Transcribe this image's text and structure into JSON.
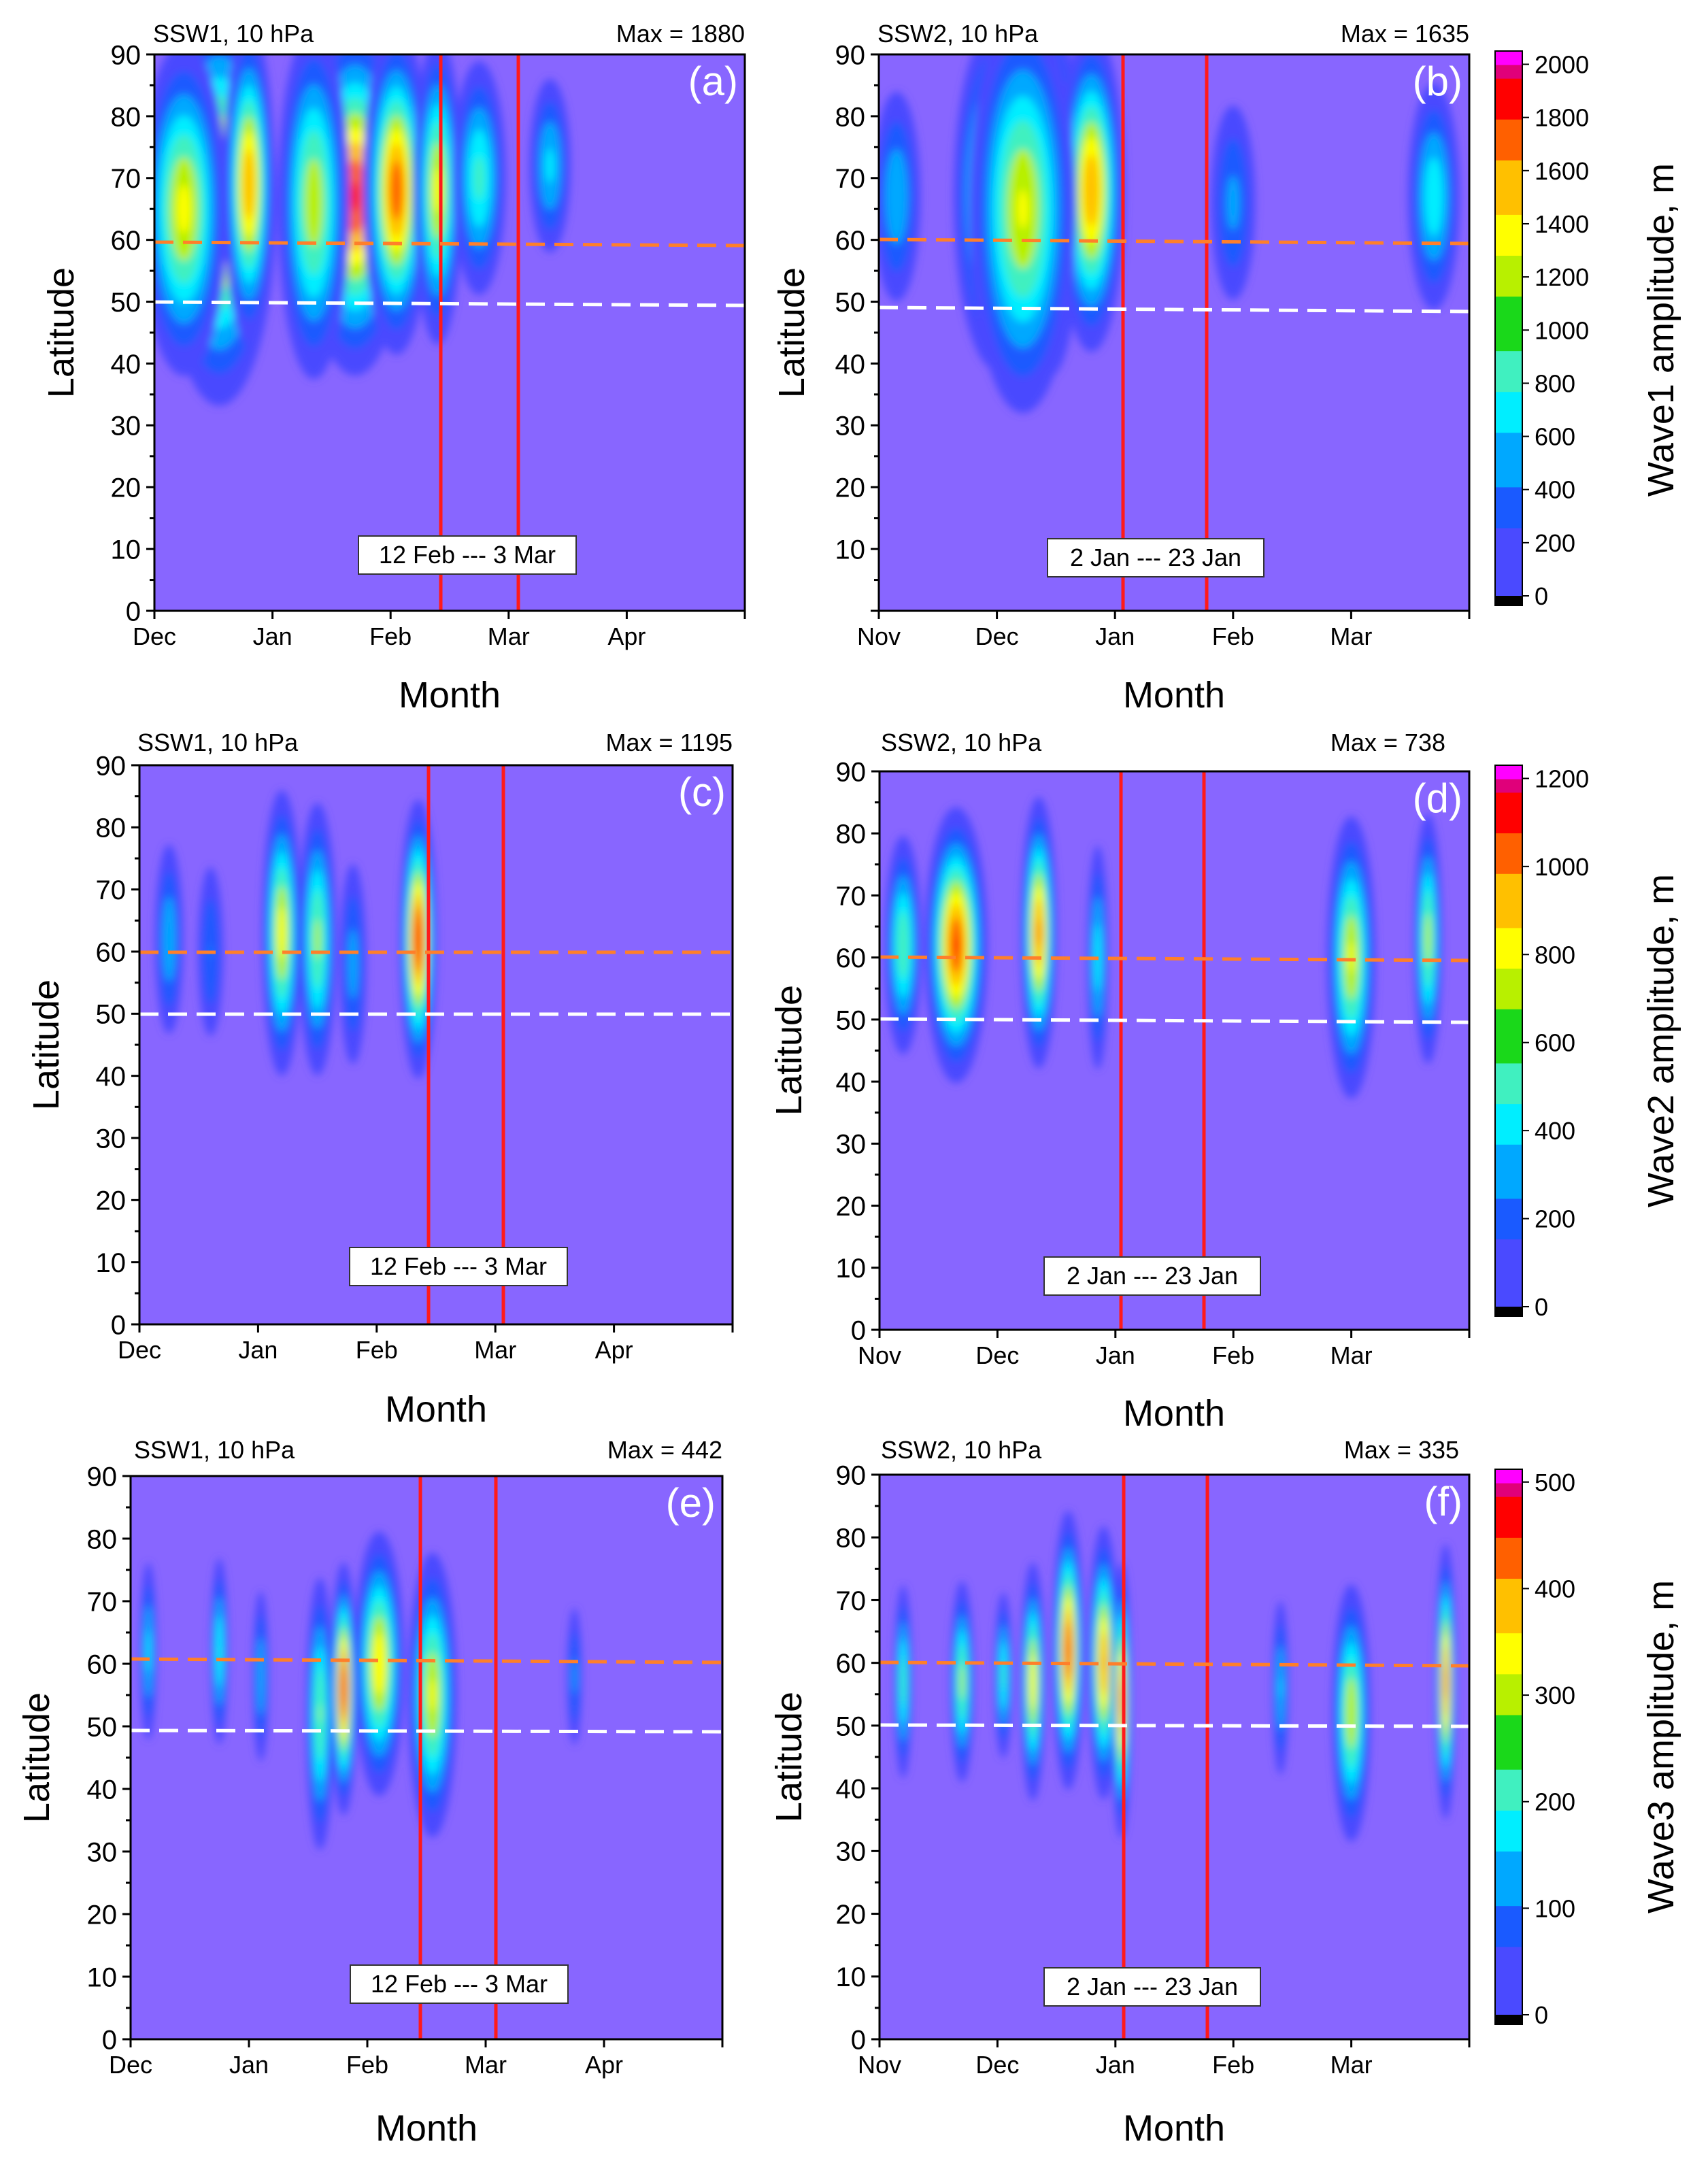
{
  "chart_data": [
    {
      "type": "heatmap",
      "panel_label": "(a)",
      "header_left": "SSW1, 10 hPa",
      "header_right": "Max = 1880",
      "xlabel": "Month",
      "ylabel": "Latitude",
      "x_ticks": [
        "Dec",
        "Jan",
        "Feb",
        "Mar",
        "Apr"
      ],
      "ylim": [
        0,
        90
      ],
      "y_ticks": [
        "0",
        "10",
        "20",
        "30",
        "40",
        "50",
        "60",
        "70",
        "80",
        "90"
      ],
      "period_label": "12 Feb --- 3 Mar",
      "event_lines_month": [
        2.4,
        3.05
      ],
      "ref_lines": [
        {
          "lat_start": 59.5,
          "lat_end": 59.0,
          "color": "#ff7f2a"
        },
        {
          "lat_start": 50.0,
          "lat_end": 49.5,
          "color": "#ffffff"
        }
      ],
      "max_value": 1880,
      "cells": [
        {
          "month": 0.55,
          "lat": 66,
          "value": 1650,
          "sx": 0.22,
          "sy": 15
        },
        {
          "month": 0.8,
          "lat": 69,
          "value": 1600,
          "sx": 0.1,
          "sy": 12
        },
        {
          "month": 0.25,
          "lat": 65,
          "value": 1300,
          "sx": 0.18,
          "sy": 13
        },
        {
          "month": 1.7,
          "lat": 67,
          "value": 1800,
          "sx": 0.2,
          "sy": 13
        },
        {
          "month": 2.05,
          "lat": 68,
          "value": 1750,
          "sx": 0.13,
          "sy": 12
        },
        {
          "month": 1.35,
          "lat": 66,
          "value": 1200,
          "sx": 0.15,
          "sy": 14
        },
        {
          "month": 2.4,
          "lat": 68,
          "value": 1300,
          "sx": 0.1,
          "sy": 12
        },
        {
          "month": 2.75,
          "lat": 70,
          "value": 900,
          "sx": 0.12,
          "sy": 10
        },
        {
          "month": 3.35,
          "lat": 72,
          "value": 700,
          "sx": 0.1,
          "sy": 8
        }
      ]
    },
    {
      "type": "heatmap",
      "panel_label": "(b)",
      "header_left": "SSW2, 10 hPa",
      "header_right": "Max = 1635",
      "xlabel": "Month",
      "ylabel": "Latitude",
      "x_ticks": [
        "Nov",
        "Dec",
        "Jan",
        "Feb",
        "Mar"
      ],
      "ylim": [
        0,
        90
      ],
      "y_ticks": [
        "",
        "10",
        "20",
        "30",
        "40",
        "50",
        "60",
        "70",
        "80",
        "90"
      ],
      "period_label": "2 Jan --- 23 Jan",
      "event_lines_month": [
        2.05,
        2.75
      ],
      "ref_lines": [
        {
          "lat_start": 60.0,
          "lat_end": 59.5,
          "color": "#ff7f2a"
        },
        {
          "lat_start": 49.8,
          "lat_end": 49.3,
          "color": "#ffffff"
        }
      ],
      "max_value": 1635,
      "cells": [
        {
          "month": 1.0,
          "lat": 67,
          "value": 1350,
          "sx": 0.17,
          "sy": 13
        },
        {
          "month": 1.45,
          "lat": 67,
          "value": 1600,
          "sx": 0.12,
          "sy": 13
        },
        {
          "month": 1.8,
          "lat": 68,
          "value": 1400,
          "sx": 0.13,
          "sy": 12
        },
        {
          "month": 1.22,
          "lat": 65,
          "value": 1100,
          "sx": 0.22,
          "sy": 16
        },
        {
          "month": 0.15,
          "lat": 67,
          "value": 550,
          "sx": 0.12,
          "sy": 10
        },
        {
          "month": 3.0,
          "lat": 66,
          "value": 450,
          "sx": 0.12,
          "sy": 10
        },
        {
          "month": 4.7,
          "lat": 67,
          "value": 700,
          "sx": 0.12,
          "sy": 10
        }
      ]
    },
    {
      "type": "heatmap",
      "panel_label": "(c)",
      "header_left": "SSW1, 10 hPa",
      "header_right": "Max = 1195",
      "xlabel": "Month",
      "ylabel": "Latitude",
      "x_ticks": [
        "Dec",
        "Jan",
        "Feb",
        "Mar",
        "Apr"
      ],
      "ylim": [
        0,
        90
      ],
      "y_ticks": [
        "0",
        "10",
        "20",
        "30",
        "40",
        "50",
        "60",
        "70",
        "80",
        "90"
      ],
      "period_label": "12 Feb --- 3 Mar",
      "event_lines_month": [
        2.45,
        3.05
      ],
      "ref_lines": [
        {
          "lat_start": 60.0,
          "lat_end": 60.0,
          "color": "#ff7f2a"
        },
        {
          "lat_start": 50.0,
          "lat_end": 50.0,
          "color": "#ffffff"
        }
      ],
      "max_value": 1195,
      "cells": [
        {
          "month": 1.2,
          "lat": 63,
          "value": 850,
          "sx": 0.08,
          "sy": 11
        },
        {
          "month": 1.5,
          "lat": 62,
          "value": 700,
          "sx": 0.08,
          "sy": 11
        },
        {
          "month": 2.35,
          "lat": 62,
          "value": 1195,
          "sx": 0.07,
          "sy": 10
        },
        {
          "month": 0.25,
          "lat": 62,
          "value": 400,
          "sx": 0.07,
          "sy": 9
        },
        {
          "month": 1.8,
          "lat": 58,
          "value": 350,
          "sx": 0.07,
          "sy": 10
        },
        {
          "month": 0.6,
          "lat": 60,
          "value": 300,
          "sx": 0.07,
          "sy": 9
        }
      ]
    },
    {
      "type": "heatmap",
      "panel_label": "(d)",
      "header_left": "SSW2, 10 hPa",
      "header_right": "Max = 738",
      "xlabel": "Month",
      "ylabel": "Latitude",
      "x_ticks": [
        "Nov",
        "Dec",
        "Jan",
        "Feb",
        "Mar"
      ],
      "ylim": [
        0,
        90
      ],
      "y_ticks": [
        "0",
        "10",
        "20",
        "30",
        "40",
        "50",
        "60",
        "70",
        "80",
        "90"
      ],
      "period_label": "2 Jan --- 23 Jan",
      "event_lines_month": [
        2.05,
        2.75
      ],
      "ref_lines": [
        {
          "lat_start": 60.0,
          "lat_end": 59.5,
          "color": "#ff7f2a"
        },
        {
          "lat_start": 50.0,
          "lat_end": 49.5,
          "color": "#ffffff"
        }
      ],
      "max_value": 738,
      "cells": [
        {
          "month": 0.65,
          "lat": 62,
          "value": 700,
          "sx": 0.12,
          "sy": 10
        },
        {
          "month": 1.35,
          "lat": 64,
          "value": 650,
          "sx": 0.07,
          "sy": 10
        },
        {
          "month": 0.2,
          "lat": 62,
          "value": 400,
          "sx": 0.08,
          "sy": 9
        },
        {
          "month": 1.85,
          "lat": 60,
          "value": 300,
          "sx": 0.05,
          "sy": 10
        },
        {
          "month": 4.0,
          "lat": 60,
          "value": 500,
          "sx": 0.1,
          "sy": 11
        },
        {
          "month": 4.65,
          "lat": 63,
          "value": 450,
          "sx": 0.06,
          "sy": 10
        }
      ]
    },
    {
      "type": "heatmap",
      "panel_label": "(e)",
      "header_left": "SSW1, 10 hPa",
      "header_right": "Max = 442",
      "xlabel": "Month",
      "ylabel": "Latitude",
      "x_ticks": [
        "Dec",
        "Jan",
        "Feb",
        "Mar",
        "Apr"
      ],
      "ylim": [
        0,
        90
      ],
      "y_ticks": [
        "0",
        "10",
        "20",
        "30",
        "40",
        "50",
        "60",
        "70",
        "80",
        "90"
      ],
      "period_label": "12 Feb --- 3 Mar",
      "event_lines_month": [
        2.45,
        3.1
      ],
      "ref_lines": [
        {
          "lat_start": 60.5,
          "lat_end": 60.0,
          "color": "#ff7f2a"
        },
        {
          "lat_start": 49.5,
          "lat_end": 49.3,
          "color": "#ffffff"
        }
      ],
      "max_value": 442,
      "cells": [
        {
          "month": 1.8,
          "lat": 56,
          "value": 442,
          "sx": 0.05,
          "sy": 9
        },
        {
          "month": 2.1,
          "lat": 60,
          "value": 330,
          "sx": 0.1,
          "sy": 10
        },
        {
          "month": 2.55,
          "lat": 55,
          "value": 300,
          "sx": 0.1,
          "sy": 11
        },
        {
          "month": 1.6,
          "lat": 52,
          "value": 250,
          "sx": 0.06,
          "sy": 11
        },
        {
          "month": 0.75,
          "lat": 62,
          "value": 200,
          "sx": 0.04,
          "sy": 8
        },
        {
          "month": 0.15,
          "lat": 62,
          "value": 170,
          "sx": 0.04,
          "sy": 8
        },
        {
          "month": 1.1,
          "lat": 58,
          "value": 150,
          "sx": 0.04,
          "sy": 8
        },
        {
          "month": 3.75,
          "lat": 58,
          "value": 120,
          "sx": 0.04,
          "sy": 7
        }
      ]
    },
    {
      "type": "heatmap",
      "panel_label": "(f)",
      "header_left": "SSW2, 10 hPa",
      "header_right": "Max = 335",
      "xlabel": "Month",
      "ylabel": "Latitude",
      "x_ticks": [
        "Nov",
        "Dec",
        "Jan",
        "Feb",
        "Mar"
      ],
      "ylim": [
        0,
        90
      ],
      "y_ticks": [
        "0",
        "10",
        "20",
        "30",
        "40",
        "50",
        "60",
        "70",
        "80",
        "90"
      ],
      "period_label": "2 Jan --- 23 Jan",
      "event_lines_month": [
        2.05,
        2.75
      ],
      "ref_lines": [
        {
          "lat_start": 60.0,
          "lat_end": 59.5,
          "color": "#ff7f2a"
        },
        {
          "lat_start": 50.0,
          "lat_end": 49.8,
          "color": "#ffffff"
        }
      ],
      "max_value": 335,
      "cells": [
        {
          "month": 1.6,
          "lat": 62,
          "value": 320,
          "sx": 0.06,
          "sy": 10
        },
        {
          "month": 1.9,
          "lat": 60,
          "value": 290,
          "sx": 0.06,
          "sy": 10
        },
        {
          "month": 2.05,
          "lat": 54,
          "value": 300,
          "sx": 0.04,
          "sy": 10
        },
        {
          "month": 1.3,
          "lat": 57,
          "value": 250,
          "sx": 0.05,
          "sy": 9
        },
        {
          "month": 0.7,
          "lat": 57,
          "value": 200,
          "sx": 0.05,
          "sy": 8
        },
        {
          "month": 0.2,
          "lat": 57,
          "value": 170,
          "sx": 0.04,
          "sy": 8
        },
        {
          "month": 1.05,
          "lat": 58,
          "value": 160,
          "sx": 0.04,
          "sy": 7
        },
        {
          "month": 3.4,
          "lat": 56,
          "value": 120,
          "sx": 0.04,
          "sy": 8
        },
        {
          "month": 4.0,
          "lat": 52,
          "value": 220,
          "sx": 0.08,
          "sy": 10
        },
        {
          "month": 4.8,
          "lat": 57,
          "value": 300,
          "sx": 0.04,
          "sy": 10
        }
      ]
    }
  ],
  "colorbars": [
    {
      "label": "Wave1 amplitude, m",
      "max": 2050,
      "tick_values": [
        0,
        200,
        400,
        600,
        800,
        1000,
        1200,
        1400,
        1600,
        1800,
        2000
      ],
      "tick_labels": [
        "0",
        "200",
        "400",
        "600",
        "800",
        "1000",
        "1200",
        "1400",
        "1600",
        "1800",
        "2000"
      ]
    },
    {
      "label": "Wave2 amplitude, m",
      "max": 1230,
      "tick_values": [
        0,
        200,
        400,
        600,
        800,
        1000,
        1200
      ],
      "tick_labels": [
        "0",
        "200",
        "400",
        "600",
        "800",
        "1000",
        "1200"
      ]
    },
    {
      "label": "Wave3 amplitude, m",
      "max": 512,
      "tick_values": [
        0,
        100,
        200,
        300,
        400,
        500
      ],
      "tick_labels": [
        "0",
        "100",
        "200",
        "300",
        "400",
        "500"
      ]
    }
  ],
  "colors": {
    "background": "#8866ff",
    "event_line": "#ff1a1a",
    "colormap": [
      "#8866ff",
      "#4a4aff",
      "#1a5aff",
      "#00a8ff",
      "#00eeff",
      "#40f0c0",
      "#1ad81a",
      "#b8f000",
      "#ffff00",
      "#ffc000",
      "#ff6000",
      "#ff0000",
      "#e0007a",
      "#ff00ff"
    ]
  }
}
